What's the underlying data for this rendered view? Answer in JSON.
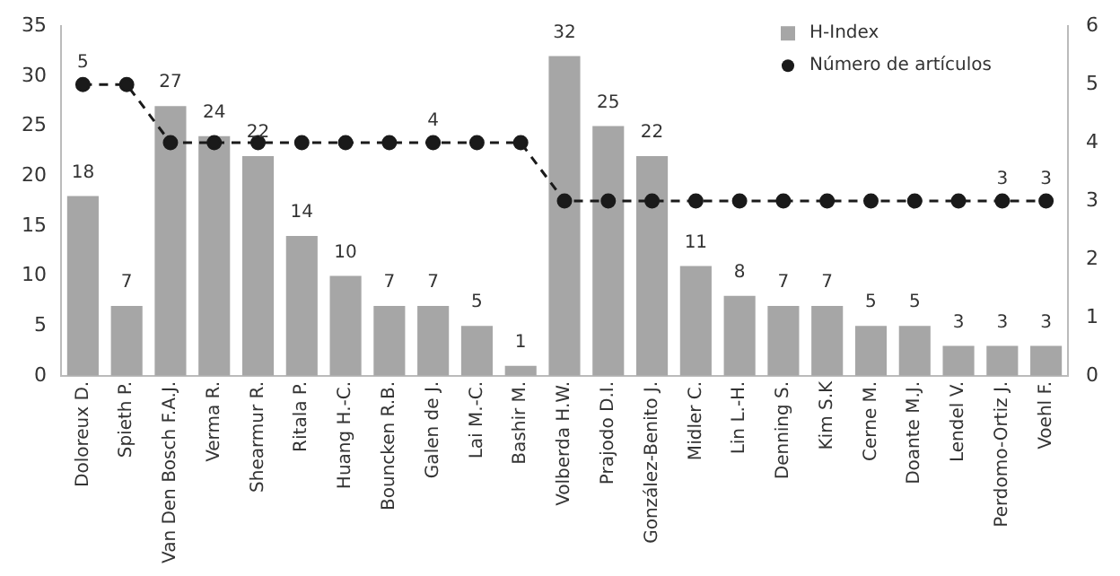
{
  "chart_data": {
    "type": "bar",
    "categories": [
      "Doloreux D.",
      "Spieth P.",
      "Van Den Bosch F.A.J.",
      "Verma R.",
      "Shearmur R.",
      "Ritala P.",
      "Huang H.-C.",
      "Bouncken R.B.",
      "Galen de J.",
      "Lai M.-C.",
      "Bashir M.",
      "Volberda H.W.",
      "Prajodo D.I.",
      "González-Benito J.",
      "Midler C.",
      "Lin L.-H.",
      "Denning S.",
      "Kim S.K",
      "Cerne M.",
      "Doante M.J.",
      "Lendel V.",
      "Perdomo-Ortiz J.",
      "Voehl F."
    ],
    "series": [
      {
        "name": "H-Index",
        "color": "#a6a6a6",
        "values": [
          18,
          7,
          27,
          24,
          22,
          14,
          10,
          7,
          7,
          5,
          1,
          32,
          25,
          22,
          11,
          8,
          7,
          7,
          5,
          5,
          3,
          3,
          3
        ],
        "value_labels": [
          "18",
          "7",
          "27",
          "24",
          "22",
          "14",
          "10",
          "7",
          "7",
          "5",
          "1",
          "32",
          "25",
          "22",
          "11",
          "8",
          "7",
          "7",
          "5",
          "5",
          "3",
          "3",
          "3"
        ]
      },
      {
        "name": "Número de artículos",
        "type": "line",
        "axis": "y2",
        "color": "#1a1a1a",
        "marker": "circle",
        "line_style": "dashed",
        "values": [
          5,
          5,
          4,
          4,
          4,
          4,
          4,
          4,
          4,
          4,
          4,
          3,
          3,
          3,
          3,
          3,
          3,
          3,
          3,
          3,
          3,
          3,
          3
        ],
        "value_labels": [
          "5",
          null,
          null,
          null,
          null,
          null,
          null,
          null,
          "4",
          null,
          null,
          null,
          null,
          null,
          null,
          null,
          null,
          null,
          null,
          null,
          null,
          "3",
          "3"
        ]
      }
    ],
    "ylim": [
      0,
      35
    ],
    "yticks": [
      0,
      5,
      10,
      15,
      20,
      25,
      30,
      35
    ],
    "y2lim": [
      0,
      6
    ],
    "y2ticks": [
      0,
      1,
      2,
      3,
      4,
      5,
      6
    ],
    "grid": false,
    "legend": "top right"
  }
}
